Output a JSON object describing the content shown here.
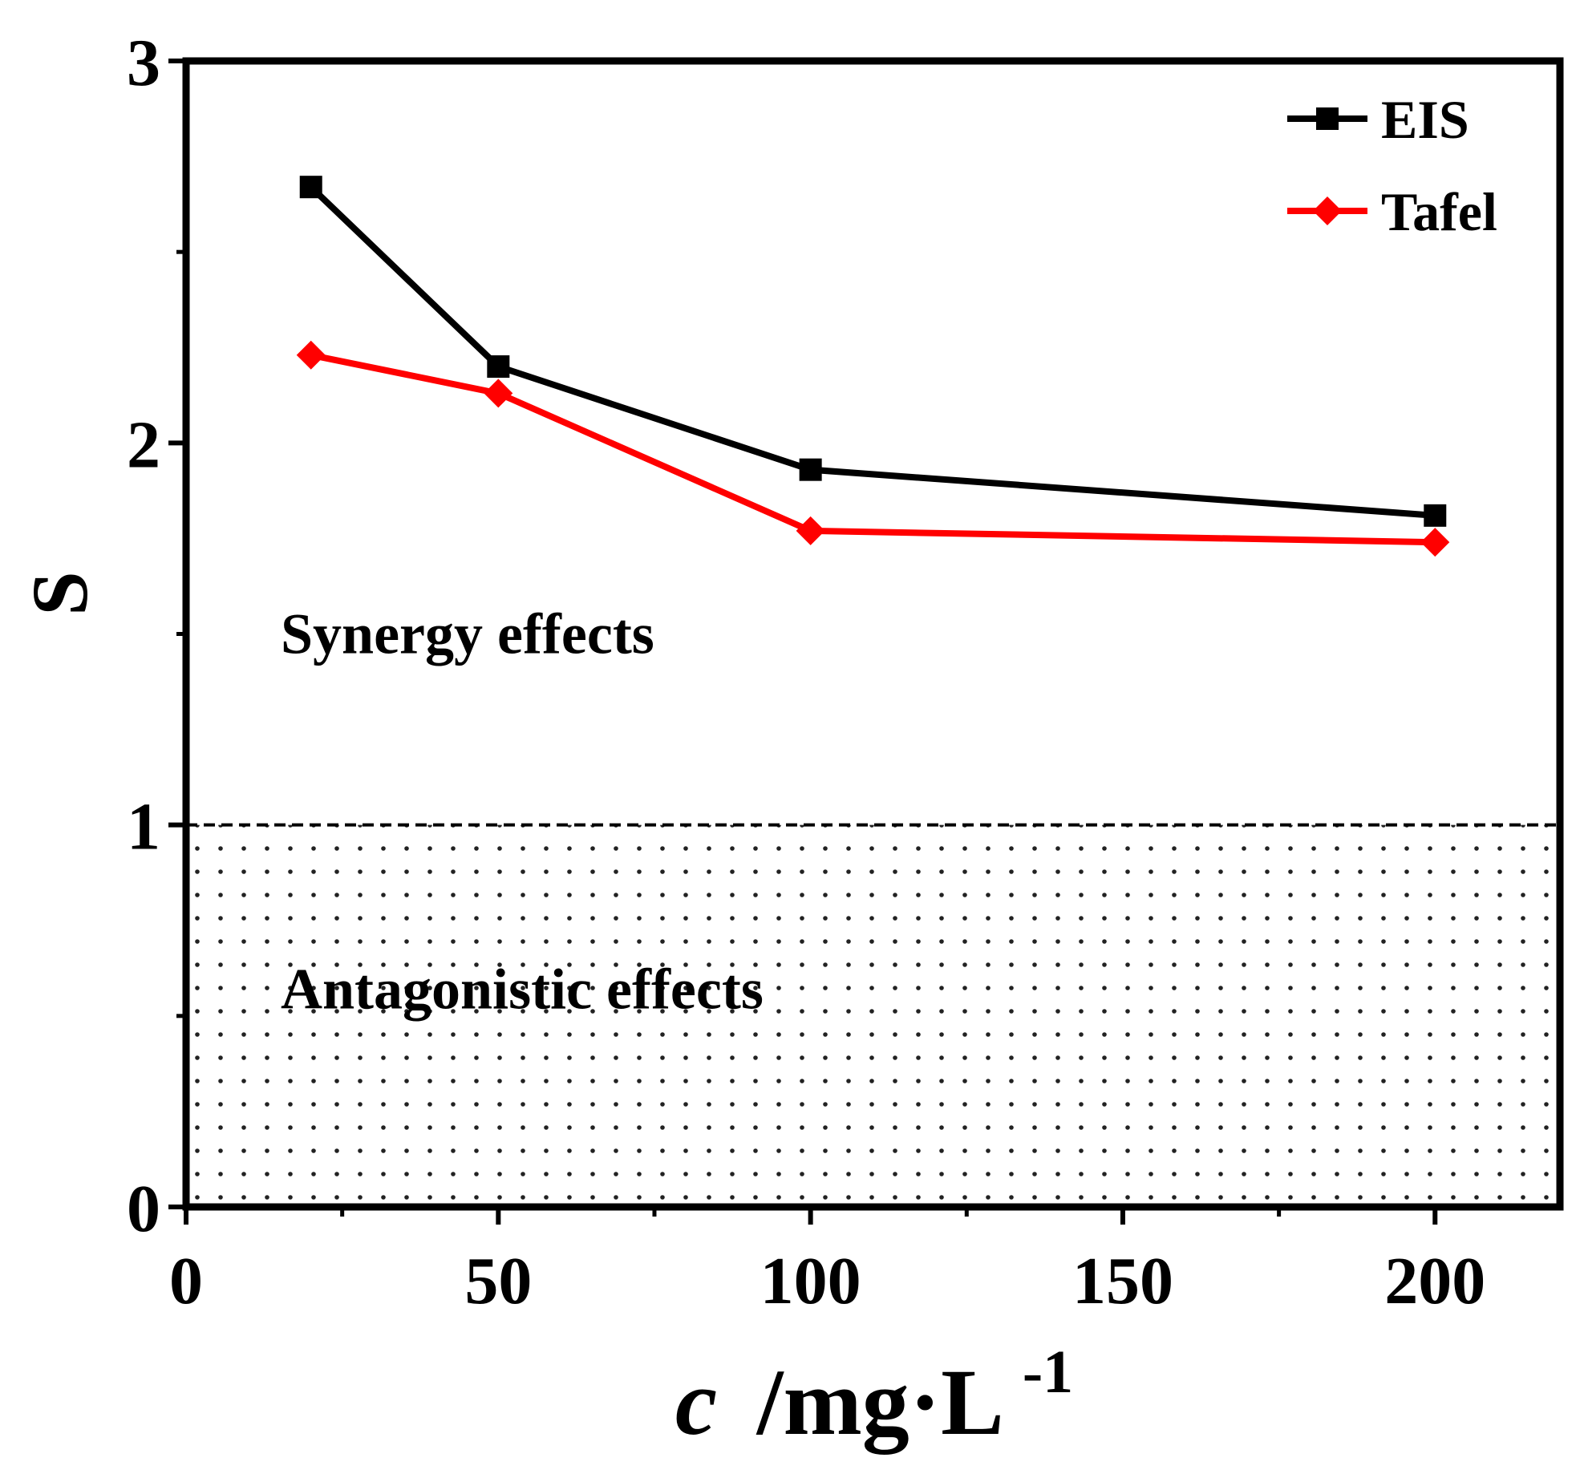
{
  "colors": {
    "eis": "#000000",
    "tafel": "#ff0000",
    "axis": "#000000",
    "dots": "#222222"
  },
  "chart_data": {
    "type": "line",
    "title": "",
    "xlabel": {
      "italic_part": "c",
      "unit": "/mg·L",
      "superscript": "-1"
    },
    "ylabel": "S",
    "xlim": [
      0,
      220
    ],
    "ylim": [
      0,
      3
    ],
    "xticks": [
      0,
      50,
      100,
      150,
      200
    ],
    "yticks": [
      0,
      1,
      2,
      3
    ],
    "xtick_labels": [
      "0",
      "50",
      "100",
      "150",
      "200"
    ],
    "ytick_labels": [
      "0",
      "1",
      "2",
      "3"
    ],
    "grid": false,
    "legend_position": "top-right",
    "series": [
      {
        "name": "EIS",
        "marker": "square",
        "x": [
          20,
          50,
          100,
          200
        ],
        "y": [
          2.67,
          2.2,
          1.93,
          1.81
        ]
      },
      {
        "name": "Tafel",
        "marker": "diamond",
        "x": [
          20,
          50,
          100,
          200
        ],
        "y": [
          2.23,
          2.13,
          1.77,
          1.74
        ]
      }
    ],
    "threshold": {
      "y": 1,
      "style": "dashed"
    },
    "regions": [
      {
        "label": "Synergy effects",
        "y_from": 1,
        "y_to": 3,
        "pattern": "none"
      },
      {
        "label": "Antagonistic effects",
        "y_from": 0,
        "y_to": 1,
        "pattern": "dots"
      }
    ]
  }
}
